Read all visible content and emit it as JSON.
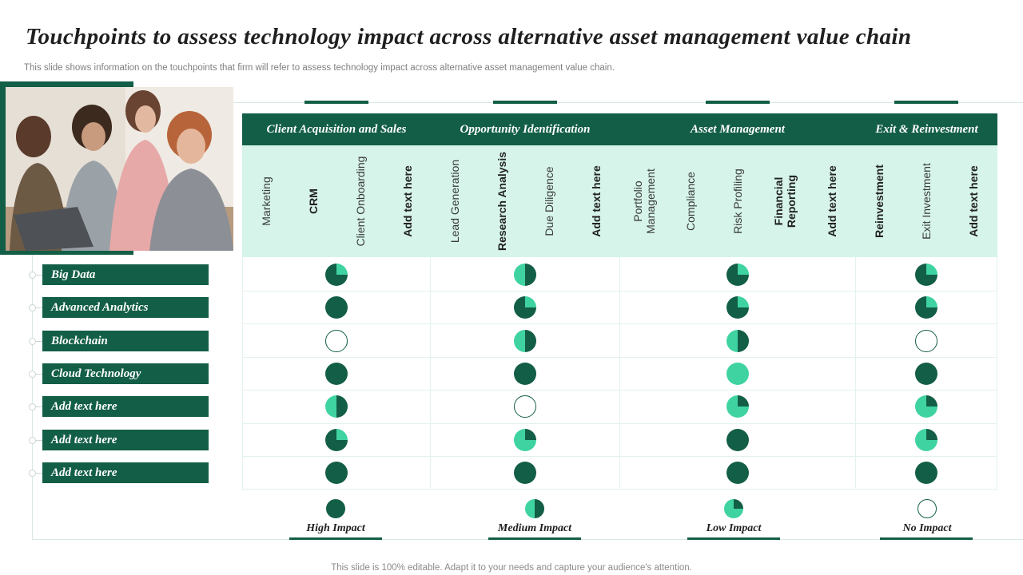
{
  "title": "Touchpoints to assess technology impact across alternative asset management value chain",
  "subtitle": "This slide shows information on the touchpoints that firm will refer to assess technology impact across alternative asset management value chain.",
  "footer": "This slide is 100% editable. Adapt it to your needs and capture your audience's attention.",
  "photo_alt": "team-photo",
  "groups": [
    {
      "title": "Client Acquisition and Sales",
      "columns": [
        {
          "label": "Marketing",
          "bold": false
        },
        {
          "label": "CRM",
          "bold": true
        },
        {
          "label": "Client Onboarding",
          "bold": false
        },
        {
          "label": "Add text here",
          "bold": true
        }
      ]
    },
    {
      "title": "Opportunity Identification",
      "columns": [
        {
          "label": "Lead Generation",
          "bold": false
        },
        {
          "label": "Research Analysis",
          "bold": true
        },
        {
          "label": "Due Diligence",
          "bold": false
        },
        {
          "label": "Add  text here",
          "bold": true
        }
      ]
    },
    {
      "title": "Asset Management",
      "columns": [
        {
          "label": "Portfolio Management",
          "bold": false
        },
        {
          "label": "Compliance",
          "bold": false
        },
        {
          "label": "Risk Profiling",
          "bold": false
        },
        {
          "label": "Financial Reporting",
          "bold": true
        },
        {
          "label": "Add text here",
          "bold": true
        }
      ]
    },
    {
      "title": "Exit & Reinvestment",
      "columns": [
        {
          "label": "Reinvestment",
          "bold": true
        },
        {
          "label": "Exit Investment",
          "bold": false
        },
        {
          "label": "Add text here",
          "bold": true
        }
      ]
    }
  ],
  "rows": [
    {
      "label": "Big Data",
      "ratings": [
        "high",
        "medium",
        "high",
        "high"
      ]
    },
    {
      "label": "Advanced Analytics",
      "ratings": [
        "full",
        "high",
        "high",
        "high"
      ]
    },
    {
      "label": "Blockchain",
      "ratings": [
        "none",
        "medium",
        "medium",
        "none"
      ]
    },
    {
      "label": "Cloud Technology",
      "ratings": [
        "full",
        "full",
        "low_full",
        "full"
      ]
    },
    {
      "label": "Add text here",
      "ratings": [
        "medium",
        "none",
        "low",
        "low"
      ]
    },
    {
      "label": "Add text here",
      "ratings": [
        "high",
        "low",
        "full",
        "low"
      ]
    },
    {
      "label": "Add text here",
      "ratings": [
        "full",
        "full",
        "full",
        "full"
      ]
    }
  ],
  "legend": [
    {
      "label": "High Impact",
      "level": "full"
    },
    {
      "label": "Medium Impact",
      "level": "medium"
    },
    {
      "label": "Low Impact",
      "level": "low"
    },
    {
      "label": "No Impact",
      "level": "none"
    }
  ],
  "colors": {
    "dark_green": "#135e46",
    "light_green": "#3fd3a1",
    "sub_band": "#d6f4ea",
    "white": "#ffffff"
  }
}
